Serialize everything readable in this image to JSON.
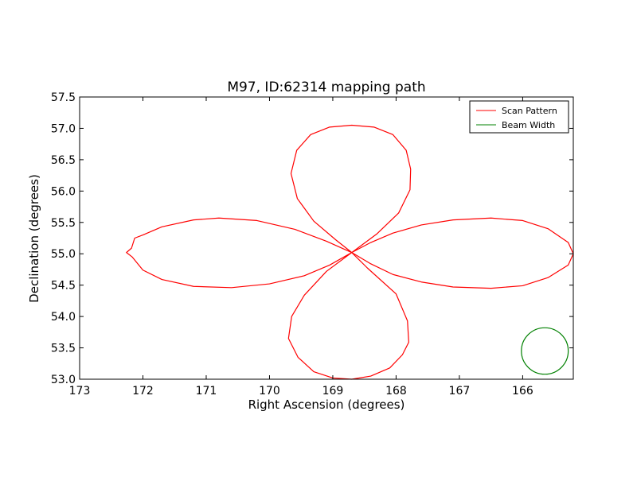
{
  "chart_data": {
    "type": "line",
    "title": "M97, ID:62314 mapping path",
    "xlabel": "Right Ascension (degrees)",
    "ylabel": "Declination (degrees)",
    "xlim": [
      173.0,
      165.2
    ],
    "ylim": [
      53.0,
      57.5
    ],
    "x_inverted": true,
    "xticks": [
      173,
      172,
      171,
      170,
      169,
      168,
      167,
      166
    ],
    "yticks": [
      53.0,
      53.5,
      54.0,
      54.5,
      55.0,
      55.5,
      56.0,
      56.5,
      57.0,
      57.5
    ],
    "ytick_labels": [
      "53.0",
      "53.5",
      "54.0",
      "54.5",
      "55.0",
      "55.5",
      "56.0",
      "56.5",
      "57.0",
      "57.5"
    ],
    "grid": false,
    "legend_position": "top-right",
    "colors": {
      "scan": "#ff0000",
      "beam": "#008000",
      "axes": "#000000"
    },
    "series": [
      {
        "name": "Scan Pattern",
        "color": "#ff0000",
        "points": [
          [
            168.7,
            55.02
          ],
          [
            168.4,
            55.18
          ],
          [
            168.05,
            55.33
          ],
          [
            167.6,
            55.46
          ],
          [
            167.1,
            55.54
          ],
          [
            166.5,
            55.57
          ],
          [
            166.0,
            55.53
          ],
          [
            165.6,
            55.4
          ],
          [
            165.28,
            55.18
          ],
          [
            165.2,
            55.0
          ],
          [
            165.28,
            54.82
          ],
          [
            165.6,
            54.62
          ],
          [
            166.0,
            54.49
          ],
          [
            166.5,
            54.45
          ],
          [
            167.1,
            54.47
          ],
          [
            167.6,
            54.55
          ],
          [
            168.05,
            54.67
          ],
          [
            168.4,
            54.84
          ],
          [
            168.7,
            55.02
          ],
          [
            168.95,
            55.22
          ],
          [
            169.3,
            55.52
          ],
          [
            169.56,
            55.88
          ],
          [
            169.66,
            56.28
          ],
          [
            169.57,
            56.65
          ],
          [
            169.35,
            56.9
          ],
          [
            169.05,
            57.02
          ],
          [
            168.7,
            57.05
          ],
          [
            168.35,
            57.02
          ],
          [
            168.05,
            56.9
          ],
          [
            167.84,
            56.65
          ],
          [
            167.77,
            56.35
          ],
          [
            167.78,
            56.02
          ],
          [
            167.96,
            55.65
          ],
          [
            168.3,
            55.32
          ],
          [
            168.7,
            55.02
          ],
          [
            169.05,
            54.82
          ],
          [
            169.45,
            54.65
          ],
          [
            170.0,
            54.52
          ],
          [
            170.6,
            54.46
          ],
          [
            171.2,
            54.48
          ],
          [
            171.7,
            54.59
          ],
          [
            172.0,
            54.74
          ],
          [
            172.17,
            54.95
          ],
          [
            172.26,
            55.02
          ],
          [
            172.18,
            55.09
          ],
          [
            172.13,
            55.25
          ],
          [
            172.0,
            55.3
          ],
          [
            171.7,
            55.43
          ],
          [
            171.2,
            55.54
          ],
          [
            170.8,
            55.57
          ],
          [
            170.2,
            55.53
          ],
          [
            169.6,
            55.39
          ],
          [
            169.1,
            55.2
          ],
          [
            168.7,
            55.02
          ],
          [
            168.45,
            54.77
          ],
          [
            168.0,
            54.36
          ],
          [
            167.82,
            53.93
          ],
          [
            167.8,
            53.59
          ],
          [
            167.9,
            53.39
          ],
          [
            168.1,
            53.18
          ],
          [
            168.4,
            53.05
          ],
          [
            168.7,
            53.0
          ],
          [
            169.0,
            53.02
          ],
          [
            169.3,
            53.12
          ],
          [
            169.55,
            53.35
          ],
          [
            169.7,
            53.65
          ],
          [
            169.65,
            54.0
          ],
          [
            169.45,
            54.34
          ],
          [
            169.1,
            54.72
          ],
          [
            168.7,
            55.02
          ]
        ]
      },
      {
        "name": "Beam Width",
        "color": "#008000",
        "shape": "circle",
        "center": [
          165.65,
          53.45
        ],
        "radius": 0.37
      }
    ]
  }
}
